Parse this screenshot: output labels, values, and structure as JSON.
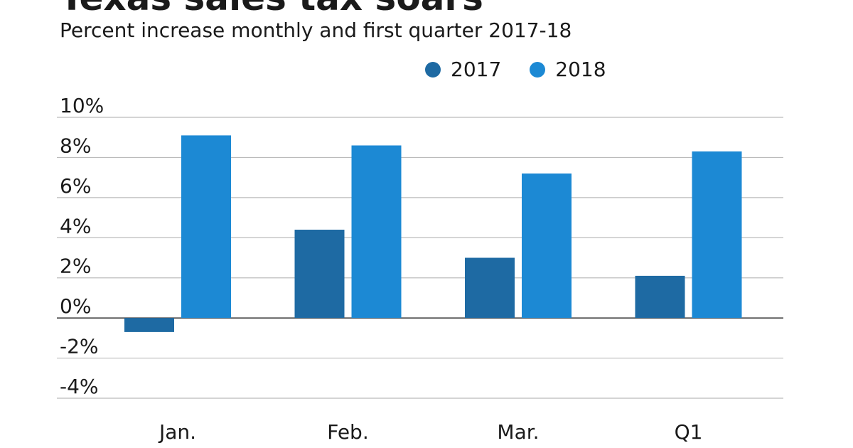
{
  "chart_data": {
    "type": "bar",
    "title": "Texas sales tax soars",
    "subtitle": "Percent increase monthly and first quarter 2017-18",
    "categories": [
      "Jan.",
      "Feb.",
      "Mar.",
      "Q1"
    ],
    "series": [
      {
        "name": "2017",
        "color": "#1e6aa3",
        "values": [
          -0.7,
          4.4,
          3.0,
          2.1
        ]
      },
      {
        "name": "2018",
        "color": "#1c89d4",
        "values": [
          9.1,
          8.6,
          7.2,
          8.3
        ]
      }
    ],
    "ylim": [
      -4,
      10
    ],
    "yticks": [
      10,
      8,
      6,
      4,
      2,
      0,
      -2,
      -4
    ],
    "ytick_labels": [
      "10%",
      "8%",
      "6%",
      "4%",
      "2%",
      "0%",
      "-2%",
      "-4%"
    ],
    "grid": true,
    "legend_position": "top-right",
    "xlabel": "",
    "ylabel": ""
  }
}
